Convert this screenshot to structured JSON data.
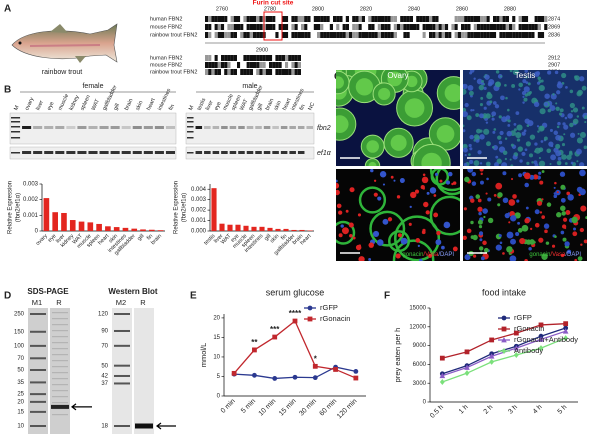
{
  "panel_labels": [
    "A",
    "B",
    "C",
    "D",
    "E",
    "F"
  ],
  "panel_a": {
    "furin": "Furin cut site",
    "species": "rainbow trout",
    "positions": [
      2760,
      2780,
      2800,
      2820,
      2840,
      2860,
      2880
    ],
    "sequences": [
      "human FBN2",
      "mouse FBN2",
      "rainbow trout FBN2"
    ],
    "ends": [
      2874,
      2869,
      2836
    ],
    "positions2": [
      2900
    ],
    "ends2": [
      2912,
      2907,
      2874
    ]
  },
  "panel_b": {
    "groups": [
      "female",
      "male"
    ],
    "female_lanes": [
      "M",
      "ovary",
      "liver",
      "eye",
      "muscle",
      "kidney",
      "spleen",
      "WAT",
      "gallbladder",
      "gill",
      "brain",
      "skin",
      "heart",
      "intestines",
      "fin"
    ],
    "male_lanes": [
      "M",
      "testis",
      "liver",
      "eye",
      "muscle",
      "spleen",
      "WAT",
      "gallbladder",
      "gill",
      "brain",
      "skin",
      "heart",
      "intestines",
      "fin",
      "NC"
    ],
    "genes": [
      "fbn2",
      "ef1α"
    ]
  },
  "panel_c": {
    "columns": [
      "Ovary",
      "Testis"
    ],
    "stain": [
      "gonacin",
      "/Vasa",
      "/DAPI"
    ]
  },
  "panel_d": {
    "sds_title": "SDS-PAGE",
    "wb_title": "Western Blot",
    "sds_lanes": [
      "M1",
      "R"
    ],
    "wb_lanes": [
      "M2",
      "R"
    ],
    "sds_markers": [
      250,
      150,
      100,
      70,
      50,
      35,
      25,
      20,
      15,
      10
    ],
    "wb_markers": [
      120,
      90,
      70,
      50,
      42,
      37,
      18
    ]
  },
  "chart_data": [
    {
      "type": "bar",
      "y_label": [
        "Relative Expression",
        "(fbn2/ef1α)"
      ],
      "color": "#e3261f",
      "categories": [
        "ovary",
        "eye",
        "liver",
        "kidney",
        "WAT",
        "muscle",
        "spleen",
        "heart",
        "skin",
        "intestines",
        "gallbladder",
        "gill",
        "fin",
        "brain"
      ],
      "values": [
        0.0021,
        0.0012,
        0.00115,
        0.0007,
        0.0006,
        0.00055,
        0.00045,
        0.0003,
        0.00025,
        0.0002,
        0.00015,
        0.0001,
        8e-05,
        5e-05
      ],
      "ylim": [
        0,
        0.003
      ],
      "yticks": [
        0,
        0.001,
        0.002,
        0.003
      ]
    },
    {
      "type": "bar",
      "y_label": [
        "Relative Expression",
        "(fbn2/ef1α)"
      ],
      "color": "#e3261f",
      "categories": [
        "testis",
        "liver",
        "WAT",
        "eye",
        "muscle",
        "spleen",
        "intestines",
        "gill",
        "skin",
        "fin",
        "gallbladder",
        "brain",
        "heart"
      ],
      "values": [
        0.0041,
        0.0007,
        0.0006,
        0.0006,
        0.0005,
        0.0004,
        0.0004,
        0.0003,
        0.0002,
        0.0002,
        0.0001,
        0.0001,
        5e-05
      ],
      "ylim": [
        0,
        0.0045
      ],
      "yticks": [
        {
          "value": 0,
          "label": "0.000"
        },
        0.001,
        0.002,
        0.003,
        0.004
      ]
    },
    {
      "type": "line",
      "title": "serum glucose",
      "y_label": [
        "mmol/L"
      ],
      "legend": "upper right",
      "categories": [
        "0 min",
        "5 min",
        "10 min",
        "15 min",
        "30 min",
        "60 min",
        "120 min"
      ],
      "series": [
        {
          "name": "rGFP",
          "color": "#2b3990",
          "marker": "circle",
          "values": [
            5.6,
            5.3,
            4.5,
            4.8,
            4.7,
            7.4,
            6.3
          ]
        },
        {
          "name": "rGonacin",
          "color": "#c1272d",
          "marker": "square",
          "values": [
            5.8,
            11.8,
            15.1,
            19.2,
            7.6,
            6.8,
            4.6
          ]
        }
      ],
      "ylim": [
        0,
        21
      ],
      "yticks": [
        0,
        5,
        10,
        15,
        20
      ],
      "annotations": [
        {
          "text": "**",
          "category": "5 min"
        },
        {
          "text": "***",
          "category": "10 min"
        },
        {
          "text": "****",
          "category": "15 min"
        },
        {
          "text": "*",
          "category": "30 min"
        }
      ]
    },
    {
      "type": "line",
      "title": "food intake",
      "y_label": [
        "prey eaten per h"
      ],
      "legend": "right",
      "categories": [
        "0.5 h",
        "1 h",
        "2 h",
        "3 h",
        "4 h",
        "5 h"
      ],
      "series": [
        {
          "name": "rGFP",
          "color": "#1f2a7a",
          "marker": "circle",
          "values": [
            4500,
            5800,
            7700,
            8900,
            10500,
            11800
          ]
        },
        {
          "name": "rGonacin",
          "color": "#b2222a",
          "marker": "square",
          "values": [
            7000,
            8000,
            9900,
            11000,
            12300,
            12500
          ]
        },
        {
          "name": "rGonacin+Antibody",
          "color": "#8a5cc6",
          "marker": "triangle",
          "values": [
            4200,
            5500,
            7300,
            8600,
            10000,
            11300
          ]
        },
        {
          "name": "Antibody",
          "color": "#7be07b",
          "marker": "diamond",
          "values": [
            3200,
            4600,
            6400,
            7500,
            8600,
            10200
          ]
        }
      ],
      "ylim": [
        0,
        15000
      ],
      "yticks": [
        0,
        3000,
        6000,
        9000,
        12000,
        15000
      ]
    }
  ]
}
